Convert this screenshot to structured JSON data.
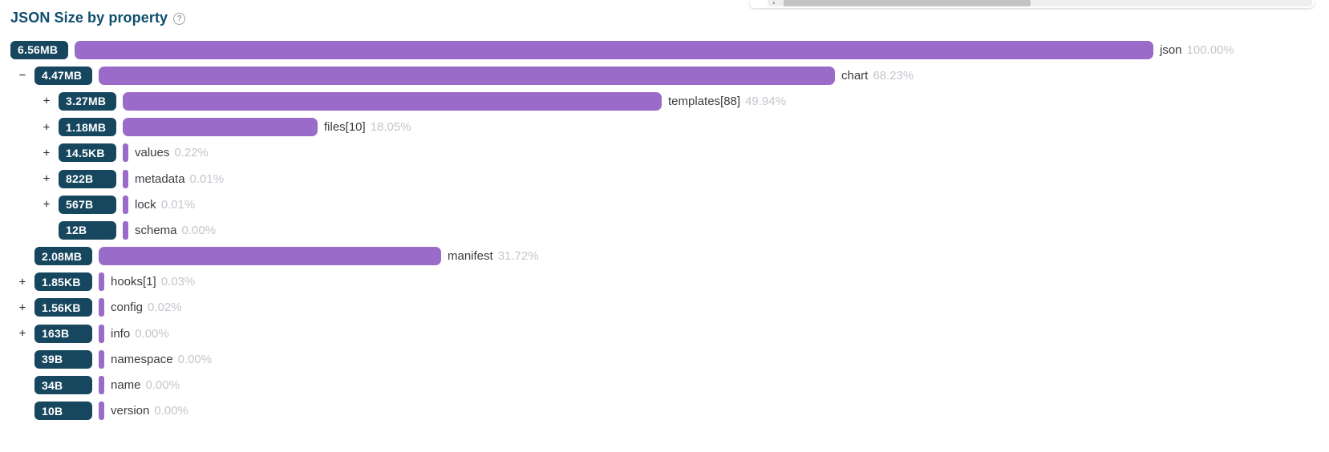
{
  "title": "JSON Size by property",
  "help_icon": "?",
  "colors": {
    "badge_bg": "#16475f",
    "bar": "#9a6bc9",
    "title": "#0f4e6e",
    "label": "#3a3d40",
    "percent": "#c2c6cb"
  },
  "chart_data": {
    "type": "bar",
    "title": "JSON Size by property",
    "orientation": "horizontal",
    "value_axis": "percent of total JSON size",
    "total_size": "6.56MB",
    "rows": [
      {
        "name": "json",
        "size": "6.56MB",
        "percent_label": "100.00%",
        "pct": 100.0,
        "level": 0,
        "expander": ""
      },
      {
        "name": "chart",
        "size": "4.47MB",
        "percent_label": "68.23%",
        "pct": 68.23,
        "level": 1,
        "expander": "−"
      },
      {
        "name": "templates[88]",
        "size": "3.27MB",
        "percent_label": "49.94%",
        "pct": 49.94,
        "level": 2,
        "expander": "+"
      },
      {
        "name": "files[10]",
        "size": "1.18MB",
        "percent_label": "18.05%",
        "pct": 18.05,
        "level": 2,
        "expander": "+"
      },
      {
        "name": "values",
        "size": "14.5KB",
        "percent_label": "0.22%",
        "pct": 0.22,
        "level": 2,
        "expander": "+"
      },
      {
        "name": "metadata",
        "size": "822B",
        "percent_label": "0.01%",
        "pct": 0.01,
        "level": 2,
        "expander": "+"
      },
      {
        "name": "lock",
        "size": "567B",
        "percent_label": "0.01%",
        "pct": 0.01,
        "level": 2,
        "expander": "+"
      },
      {
        "name": "schema",
        "size": "12B",
        "percent_label": "0.00%",
        "pct": 0.0,
        "level": 2,
        "expander": ""
      },
      {
        "name": "manifest",
        "size": "2.08MB",
        "percent_label": "31.72%",
        "pct": 31.72,
        "level": 1,
        "expander": ""
      },
      {
        "name": "hooks[1]",
        "size": "1.85KB",
        "percent_label": "0.03%",
        "pct": 0.03,
        "level": 1,
        "expander": "+"
      },
      {
        "name": "config",
        "size": "1.56KB",
        "percent_label": "0.02%",
        "pct": 0.02,
        "level": 1,
        "expander": "+"
      },
      {
        "name": "info",
        "size": "163B",
        "percent_label": "0.00%",
        "pct": 0.0,
        "level": 1,
        "expander": "+"
      },
      {
        "name": "namespace",
        "size": "39B",
        "percent_label": "0.00%",
        "pct": 0.0,
        "level": 1,
        "expander": ""
      },
      {
        "name": "name",
        "size": "34B",
        "percent_label": "0.00%",
        "pct": 0.0,
        "level": 1,
        "expander": ""
      },
      {
        "name": "version",
        "size": "10B",
        "percent_label": "0.00%",
        "pct": 0.0,
        "level": 1,
        "expander": ""
      }
    ]
  }
}
